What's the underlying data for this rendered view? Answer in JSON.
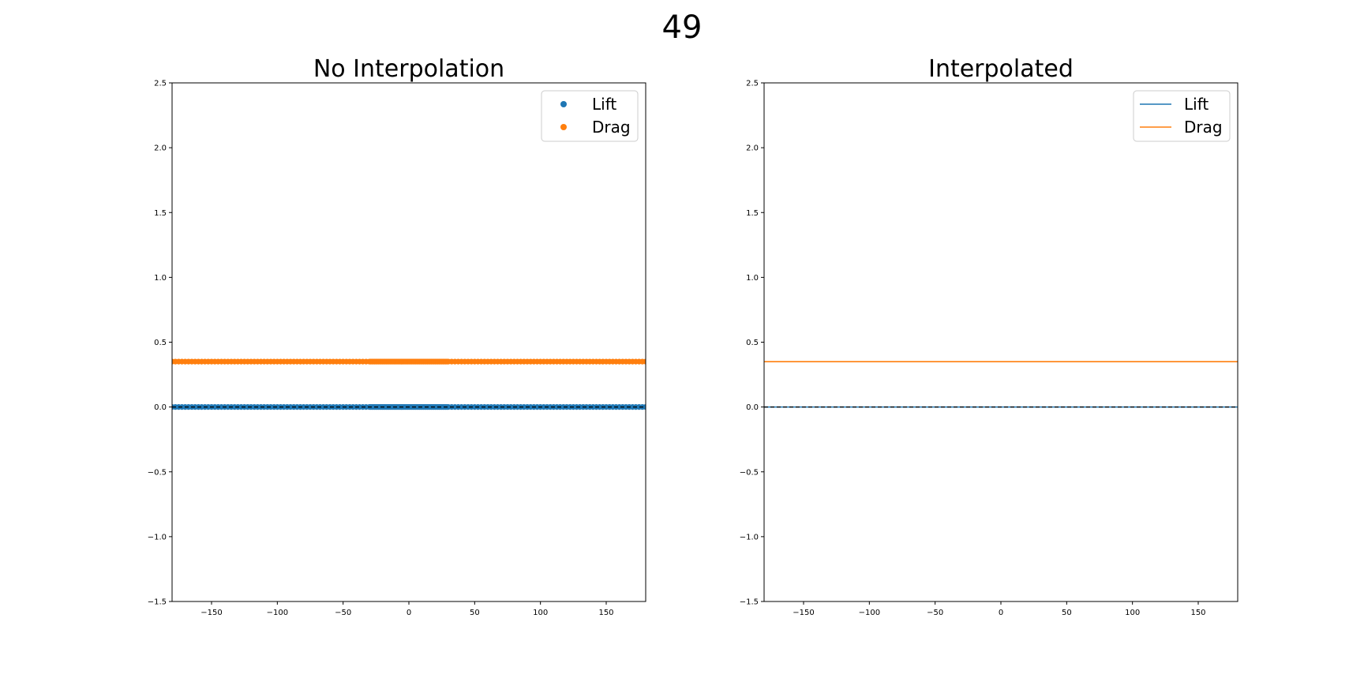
{
  "figure": {
    "suptitle": "49"
  },
  "colors": {
    "lift": "#1f77b4",
    "drag": "#ff7f0e",
    "reference": "#000000"
  },
  "chart_data": [
    {
      "type": "scatter",
      "title": "No Interpolation",
      "xlim": [
        -180,
        180
      ],
      "ylim": [
        -1.5,
        2.5
      ],
      "xticks": [
        -150,
        -100,
        -50,
        0,
        50,
        100,
        150
      ],
      "yticks": [
        -1.5,
        -1.0,
        -0.5,
        0.0,
        0.5,
        1.0,
        1.5,
        2.0,
        2.5
      ],
      "xtick_labels": [
        "−150",
        "−100",
        "−50",
        "0",
        "50",
        "100",
        "150"
      ],
      "ytick_labels": [
        "−1.5",
        "−1.0",
        "−0.5",
        "0.0",
        "0.5",
        "1.0",
        "1.5",
        "2.0",
        "2.5"
      ],
      "grid": false,
      "legend": "top-right",
      "reference_line": {
        "y": 0,
        "style": "dashed",
        "color": "#000000"
      },
      "x_sampling": [
        {
          "from": -180,
          "to": -30,
          "step": 2.5
        },
        {
          "from": -30,
          "to": 30,
          "step": 1
        },
        {
          "from": 30,
          "to": 180,
          "step": 2.5
        }
      ],
      "series": [
        {
          "name": "Lift",
          "color": "#1f77b4",
          "marker": "circle",
          "constant_y": 0.0
        },
        {
          "name": "Drag",
          "color": "#ff7f0e",
          "marker": "circle",
          "constant_y": 0.35
        }
      ]
    },
    {
      "type": "line",
      "title": "Interpolated",
      "xlim": [
        -180,
        180
      ],
      "ylim": [
        -1.5,
        2.5
      ],
      "xticks": [
        -150,
        -100,
        -50,
        0,
        50,
        100,
        150
      ],
      "yticks": [
        -1.5,
        -1.0,
        -0.5,
        0.0,
        0.5,
        1.0,
        1.5,
        2.0,
        2.5
      ],
      "xtick_labels": [
        "−150",
        "−100",
        "−50",
        "0",
        "50",
        "100",
        "150"
      ],
      "ytick_labels": [
        "−1.5",
        "−1.0",
        "−0.5",
        "0.0",
        "0.5",
        "1.0",
        "1.5",
        "2.0",
        "2.5"
      ],
      "grid": false,
      "legend": "top-right",
      "reference_line": {
        "y": 0,
        "style": "dashed",
        "color": "#000000"
      },
      "series": [
        {
          "name": "Lift",
          "color": "#1f77b4",
          "x": [
            -180,
            180
          ],
          "y": [
            0.0,
            0.0
          ]
        },
        {
          "name": "Drag",
          "color": "#ff7f0e",
          "x": [
            -180,
            180
          ],
          "y": [
            0.35,
            0.35
          ]
        }
      ]
    }
  ]
}
